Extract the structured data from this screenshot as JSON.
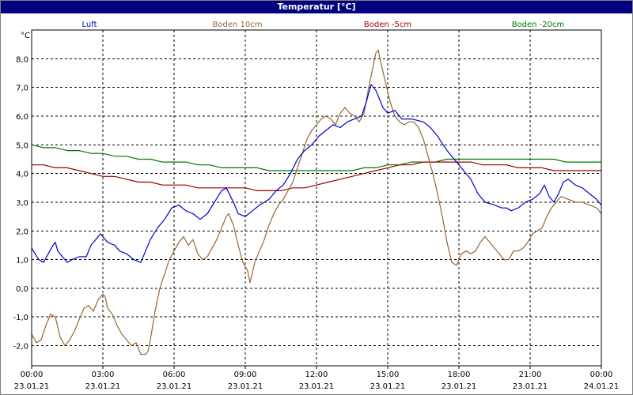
{
  "window": {
    "title": "Temperatur [°C]"
  },
  "colors": {
    "title_bar": "#000080",
    "luft": "#0000cc",
    "boden_10cm": "#996633",
    "boden_minus5cm": "#990000",
    "boden_minus20cm": "#007700"
  },
  "chart_data": {
    "type": "line",
    "title": "Temperatur [°C]",
    "ylabel": "°C",
    "ylim": [
      -2.7,
      9.0
    ],
    "y_ticks": [
      "8,0",
      "7,0",
      "6,0",
      "5,0",
      "4,0",
      "3,0",
      "2,0",
      "1,0",
      "0,0",
      "-1,0",
      "-2,0"
    ],
    "y_tick_values": [
      8,
      7,
      6,
      5,
      4,
      3,
      2,
      1,
      0,
      -1,
      -2
    ],
    "x_ticks": [
      {
        "time": "00:00",
        "date": "23.01.21"
      },
      {
        "time": "03:00",
        "date": "23.01.21"
      },
      {
        "time": "06:00",
        "date": "23.01.21"
      },
      {
        "time": "09:00",
        "date": "23.01.21"
      },
      {
        "time": "12:00",
        "date": "23.01.21"
      },
      {
        "time": "15:00",
        "date": "23.01.21"
      },
      {
        "time": "18:00",
        "date": "23.01.21"
      },
      {
        "time": "21:00",
        "date": "23.01.21"
      },
      {
        "time": "00:00",
        "date": "24.01.21"
      }
    ],
    "xlim_hours": [
      0,
      24
    ],
    "grid": true,
    "legend_placement": "top",
    "series": [
      {
        "name": "Luft",
        "points": [
          [
            0,
            1.4
          ],
          [
            0.3,
            1.0
          ],
          [
            0.5,
            0.9
          ],
          [
            0.7,
            1.2
          ],
          [
            0.9,
            1.5
          ],
          [
            1.0,
            1.6
          ],
          [
            1.1,
            1.3
          ],
          [
            1.3,
            1.1
          ],
          [
            1.5,
            0.9
          ],
          [
            1.7,
            1.0
          ],
          [
            2.0,
            1.1
          ],
          [
            2.3,
            1.1
          ],
          [
            2.5,
            1.5
          ],
          [
            2.7,
            1.7
          ],
          [
            2.9,
            1.9
          ],
          [
            3.0,
            1.8
          ],
          [
            3.2,
            1.6
          ],
          [
            3.5,
            1.5
          ],
          [
            3.7,
            1.3
          ],
          [
            4.0,
            1.2
          ],
          [
            4.3,
            1.0
          ],
          [
            4.6,
            0.9
          ],
          [
            4.8,
            1.3
          ],
          [
            5.0,
            1.7
          ],
          [
            5.3,
            2.1
          ],
          [
            5.6,
            2.4
          ],
          [
            5.9,
            2.8
          ],
          [
            6.2,
            2.9
          ],
          [
            6.5,
            2.7
          ],
          [
            6.8,
            2.6
          ],
          [
            7.1,
            2.4
          ],
          [
            7.4,
            2.6
          ],
          [
            7.7,
            3.0
          ],
          [
            8.0,
            3.4
          ],
          [
            8.2,
            3.5
          ],
          [
            8.5,
            3.0
          ],
          [
            8.7,
            2.6
          ],
          [
            9.0,
            2.5
          ],
          [
            9.3,
            2.7
          ],
          [
            9.6,
            2.9
          ],
          [
            10.0,
            3.1
          ],
          [
            10.3,
            3.4
          ],
          [
            10.6,
            3.6
          ],
          [
            10.9,
            4.0
          ],
          [
            11.2,
            4.5
          ],
          [
            11.5,
            4.8
          ],
          [
            11.8,
            5.0
          ],
          [
            12.1,
            5.3
          ],
          [
            12.4,
            5.5
          ],
          [
            12.7,
            5.7
          ],
          [
            13.0,
            5.6
          ],
          [
            13.3,
            5.8
          ],
          [
            13.6,
            5.9
          ],
          [
            13.9,
            6.0
          ],
          [
            14.1,
            6.5
          ],
          [
            14.3,
            7.1
          ],
          [
            14.5,
            6.9
          ],
          [
            14.8,
            6.3
          ],
          [
            15.0,
            6.1
          ],
          [
            15.3,
            6.2
          ],
          [
            15.6,
            5.9
          ],
          [
            16.0,
            5.9
          ],
          [
            16.5,
            5.8
          ],
          [
            16.8,
            5.6
          ],
          [
            17.1,
            5.3
          ],
          [
            17.5,
            4.8
          ],
          [
            17.8,
            4.5
          ],
          [
            18.1,
            4.2
          ],
          [
            18.5,
            3.8
          ],
          [
            18.8,
            3.3
          ],
          [
            19.1,
            3.0
          ],
          [
            19.5,
            2.9
          ],
          [
            19.8,
            2.8
          ],
          [
            20.0,
            2.8
          ],
          [
            20.2,
            2.7
          ],
          [
            20.5,
            2.8
          ],
          [
            20.8,
            3.0
          ],
          [
            21.1,
            3.1
          ],
          [
            21.4,
            3.3
          ],
          [
            21.6,
            3.6
          ],
          [
            21.8,
            3.2
          ],
          [
            22.0,
            3.0
          ],
          [
            22.2,
            3.3
          ],
          [
            22.4,
            3.7
          ],
          [
            22.6,
            3.8
          ],
          [
            22.9,
            3.6
          ],
          [
            23.2,
            3.5
          ],
          [
            23.5,
            3.3
          ],
          [
            23.8,
            3.1
          ],
          [
            24.0,
            2.9
          ]
        ]
      },
      {
        "name": "Boden 10cm",
        "points": [
          [
            0,
            -1.6
          ],
          [
            0.2,
            -1.9
          ],
          [
            0.4,
            -1.8
          ],
          [
            0.6,
            -1.3
          ],
          [
            0.8,
            -0.9
          ],
          [
            1.0,
            -1.0
          ],
          [
            1.2,
            -1.7
          ],
          [
            1.4,
            -2.0
          ],
          [
            1.6,
            -1.8
          ],
          [
            1.8,
            -1.5
          ],
          [
            2.0,
            -1.1
          ],
          [
            2.2,
            -0.7
          ],
          [
            2.4,
            -0.6
          ],
          [
            2.6,
            -0.8
          ],
          [
            2.8,
            -0.4
          ],
          [
            3.0,
            -0.2
          ],
          [
            3.1,
            -0.3
          ],
          [
            3.2,
            -0.7
          ],
          [
            3.4,
            -0.9
          ],
          [
            3.6,
            -1.3
          ],
          [
            3.8,
            -1.6
          ],
          [
            4.0,
            -1.8
          ],
          [
            4.2,
            -2.0
          ],
          [
            4.4,
            -1.9
          ],
          [
            4.6,
            -2.3
          ],
          [
            4.8,
            -2.3
          ],
          [
            4.9,
            -2.2
          ],
          [
            5.0,
            -1.8
          ],
          [
            5.2,
            -0.8
          ],
          [
            5.4,
            0.0
          ],
          [
            5.6,
            0.5
          ],
          [
            5.8,
            1.0
          ],
          [
            6.0,
            1.3
          ],
          [
            6.2,
            1.6
          ],
          [
            6.4,
            1.8
          ],
          [
            6.6,
            1.5
          ],
          [
            6.8,
            1.7
          ],
          [
            7.0,
            1.2
          ],
          [
            7.2,
            1.0
          ],
          [
            7.4,
            1.1
          ],
          [
            7.6,
            1.4
          ],
          [
            7.8,
            1.7
          ],
          [
            8.0,
            2.1
          ],
          [
            8.2,
            2.5
          ],
          [
            8.3,
            2.6
          ],
          [
            8.5,
            2.2
          ],
          [
            8.7,
            1.5
          ],
          [
            8.9,
            0.9
          ],
          [
            9.1,
            0.6
          ],
          [
            9.2,
            0.2
          ],
          [
            9.4,
            0.9
          ],
          [
            9.6,
            1.3
          ],
          [
            9.8,
            1.7
          ],
          [
            10.0,
            2.2
          ],
          [
            10.2,
            2.6
          ],
          [
            10.4,
            2.9
          ],
          [
            10.6,
            3.1
          ],
          [
            10.8,
            3.4
          ],
          [
            11.0,
            3.7
          ],
          [
            11.2,
            4.2
          ],
          [
            11.4,
            4.7
          ],
          [
            11.6,
            5.2
          ],
          [
            11.8,
            5.5
          ],
          [
            12.0,
            5.7
          ],
          [
            12.2,
            5.9
          ],
          [
            12.4,
            6.0
          ],
          [
            12.6,
            5.9
          ],
          [
            12.8,
            5.7
          ],
          [
            13.0,
            6.1
          ],
          [
            13.2,
            6.3
          ],
          [
            13.4,
            6.1
          ],
          [
            13.6,
            6.0
          ],
          [
            13.8,
            5.8
          ],
          [
            14.0,
            6.1
          ],
          [
            14.2,
            7.0
          ],
          [
            14.4,
            7.8
          ],
          [
            14.5,
            8.2
          ],
          [
            14.6,
            8.3
          ],
          [
            14.7,
            7.9
          ],
          [
            14.9,
            7.2
          ],
          [
            15.1,
            6.5
          ],
          [
            15.3,
            6.0
          ],
          [
            15.5,
            5.8
          ],
          [
            15.7,
            5.7
          ],
          [
            15.9,
            5.8
          ],
          [
            16.1,
            5.8
          ],
          [
            16.3,
            5.6
          ],
          [
            16.5,
            5.2
          ],
          [
            16.7,
            4.6
          ],
          [
            16.9,
            4.0
          ],
          [
            17.1,
            3.3
          ],
          [
            17.3,
            2.5
          ],
          [
            17.5,
            1.6
          ],
          [
            17.7,
            0.9
          ],
          [
            17.9,
            0.8
          ],
          [
            18.1,
            1.2
          ],
          [
            18.3,
            1.3
          ],
          [
            18.5,
            1.2
          ],
          [
            18.7,
            1.3
          ],
          [
            18.9,
            1.6
          ],
          [
            19.1,
            1.8
          ],
          [
            19.3,
            1.6
          ],
          [
            19.5,
            1.4
          ],
          [
            19.7,
            1.2
          ],
          [
            19.9,
            1.0
          ],
          [
            20.1,
            1.0
          ],
          [
            20.3,
            1.3
          ],
          [
            20.5,
            1.3
          ],
          [
            20.7,
            1.4
          ],
          [
            20.9,
            1.6
          ],
          [
            21.1,
            1.9
          ],
          [
            21.3,
            2.0
          ],
          [
            21.5,
            2.1
          ],
          [
            21.7,
            2.5
          ],
          [
            21.9,
            2.8
          ],
          [
            22.1,
            3.0
          ],
          [
            22.3,
            3.2
          ],
          [
            22.6,
            3.1
          ],
          [
            22.9,
            3.0
          ],
          [
            23.2,
            3.0
          ],
          [
            23.5,
            2.9
          ],
          [
            23.8,
            2.8
          ],
          [
            24.0,
            2.6
          ]
        ]
      },
      {
        "name": "Boden -5cm",
        "points": [
          [
            0,
            4.3
          ],
          [
            0.5,
            4.3
          ],
          [
            1.0,
            4.2
          ],
          [
            1.5,
            4.2
          ],
          [
            2.0,
            4.1
          ],
          [
            2.5,
            4.0
          ],
          [
            3.0,
            3.9
          ],
          [
            3.5,
            3.9
          ],
          [
            4.0,
            3.8
          ],
          [
            4.5,
            3.7
          ],
          [
            5.0,
            3.7
          ],
          [
            5.5,
            3.6
          ],
          [
            6.0,
            3.6
          ],
          [
            6.5,
            3.6
          ],
          [
            7.0,
            3.5
          ],
          [
            7.5,
            3.5
          ],
          [
            8.0,
            3.5
          ],
          [
            8.5,
            3.5
          ],
          [
            9.0,
            3.5
          ],
          [
            9.5,
            3.4
          ],
          [
            10.0,
            3.4
          ],
          [
            10.5,
            3.4
          ],
          [
            11.0,
            3.5
          ],
          [
            11.5,
            3.5
          ],
          [
            12.0,
            3.6
          ],
          [
            12.5,
            3.7
          ],
          [
            13.0,
            3.8
          ],
          [
            13.5,
            3.9
          ],
          [
            14.0,
            4.0
          ],
          [
            14.5,
            4.1
          ],
          [
            15.0,
            4.2
          ],
          [
            15.5,
            4.3
          ],
          [
            16.0,
            4.3
          ],
          [
            16.5,
            4.4
          ],
          [
            17.0,
            4.4
          ],
          [
            17.5,
            4.4
          ],
          [
            18.0,
            4.4
          ],
          [
            18.5,
            4.4
          ],
          [
            19.0,
            4.3
          ],
          [
            19.5,
            4.3
          ],
          [
            20.0,
            4.3
          ],
          [
            20.5,
            4.2
          ],
          [
            21.0,
            4.2
          ],
          [
            21.5,
            4.2
          ],
          [
            22.0,
            4.1
          ],
          [
            22.5,
            4.1
          ],
          [
            23.0,
            4.1
          ],
          [
            23.5,
            4.1
          ],
          [
            24.0,
            4.1
          ]
        ]
      },
      {
        "name": "Boden -20cm",
        "points": [
          [
            0,
            5.0
          ],
          [
            0.5,
            4.9
          ],
          [
            1.0,
            4.9
          ],
          [
            1.5,
            4.8
          ],
          [
            2.0,
            4.8
          ],
          [
            2.5,
            4.7
          ],
          [
            3.0,
            4.7
          ],
          [
            3.5,
            4.6
          ],
          [
            4.0,
            4.6
          ],
          [
            4.5,
            4.5
          ],
          [
            5.0,
            4.5
          ],
          [
            5.5,
            4.4
          ],
          [
            6.0,
            4.4
          ],
          [
            6.5,
            4.4
          ],
          [
            7.0,
            4.3
          ],
          [
            7.5,
            4.3
          ],
          [
            8.0,
            4.2
          ],
          [
            8.5,
            4.2
          ],
          [
            9.0,
            4.2
          ],
          [
            9.5,
            4.2
          ],
          [
            10.0,
            4.1
          ],
          [
            10.5,
            4.1
          ],
          [
            11.0,
            4.1
          ],
          [
            11.5,
            4.1
          ],
          [
            12.0,
            4.1
          ],
          [
            12.5,
            4.1
          ],
          [
            13.0,
            4.1
          ],
          [
            13.5,
            4.1
          ],
          [
            14.0,
            4.2
          ],
          [
            14.5,
            4.2
          ],
          [
            15.0,
            4.3
          ],
          [
            15.5,
            4.3
          ],
          [
            16.0,
            4.4
          ],
          [
            16.5,
            4.4
          ],
          [
            17.0,
            4.4
          ],
          [
            17.5,
            4.5
          ],
          [
            18.0,
            4.5
          ],
          [
            18.5,
            4.5
          ],
          [
            19.0,
            4.5
          ],
          [
            19.5,
            4.5
          ],
          [
            20.0,
            4.5
          ],
          [
            20.5,
            4.5
          ],
          [
            21.0,
            4.5
          ],
          [
            21.5,
            4.5
          ],
          [
            22.0,
            4.5
          ],
          [
            22.5,
            4.4
          ],
          [
            23.0,
            4.4
          ],
          [
            23.5,
            4.4
          ],
          [
            24.0,
            4.4
          ]
        ]
      }
    ]
  }
}
